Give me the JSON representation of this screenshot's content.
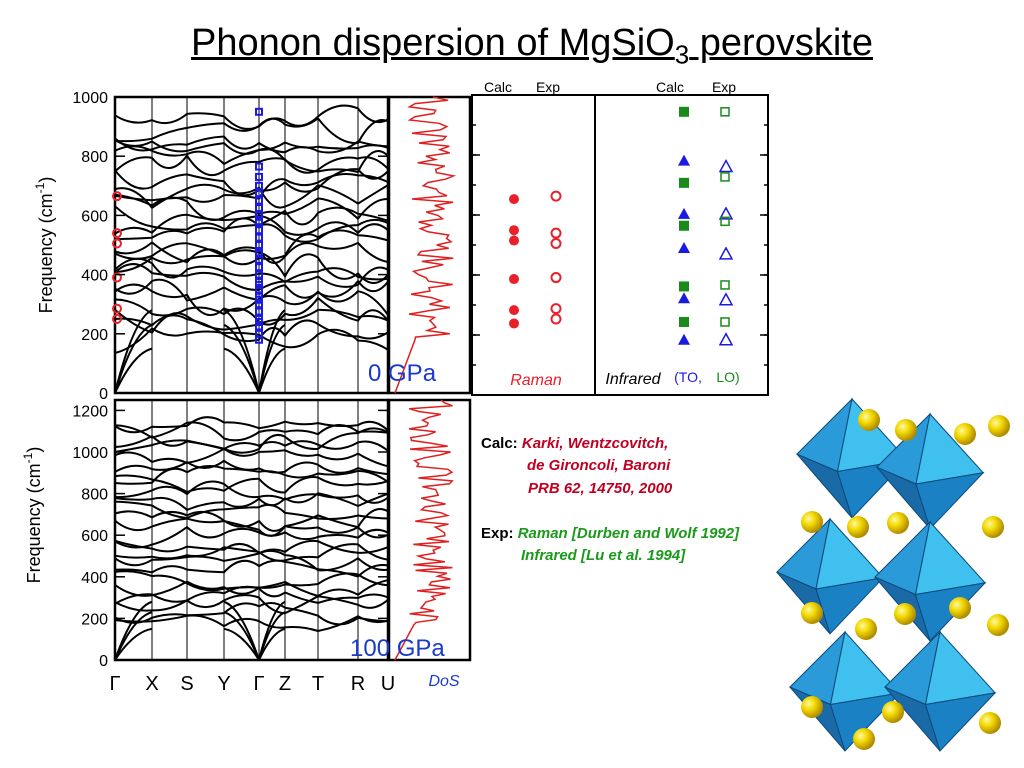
{
  "title": {
    "main": "Phonon dispersion of MgSiO",
    "sub": "3",
    "tail": " perovskite"
  },
  "panels": {
    "top": {
      "ylabel": "Frequency (cm",
      "ylabel_exp": "-1",
      "ylabel_close": ")",
      "yticks": [
        0,
        200,
        400,
        600,
        800,
        1000
      ],
      "pressure": "0 GPa"
    },
    "bottom": {
      "ylabel": "Frequency (cm",
      "ylabel_exp": "-1",
      "ylabel_close": ")",
      "yticks": [
        0,
        200,
        400,
        600,
        800,
        1000,
        1200
      ],
      "pressure": "100 GPa"
    },
    "kpoints": [
      "Γ",
      "X",
      "S",
      "Y",
      "Γ",
      "Z",
      "T",
      "R",
      "U"
    ],
    "dos_label": "DoS"
  },
  "modes_panel": {
    "calc_exp_left": [
      "Calc",
      "Exp"
    ],
    "calc_exp_right": [
      "Calc",
      "Exp"
    ],
    "raman_label": "Raman",
    "infrared_label": "Infrared",
    "to_label": "(TO,",
    "lo_label": "LO)"
  },
  "chart_data": {
    "type": "scatter",
    "title": "Phonon dispersion of MgSiO3 perovskite",
    "ylabel": "Frequency (cm-1)",
    "raman": {
      "calc": [
        655,
        550,
        515,
        385,
        280,
        235
      ],
      "exp": [
        665,
        540,
        505,
        390,
        285,
        250
      ]
    },
    "infrared_to": {
      "calc": [
        785,
        605,
        490,
        320,
        180
      ],
      "exp": [
        765,
        605,
        470,
        315,
        180
      ]
    },
    "infrared_lo": {
      "calc": [
        950,
        710,
        565,
        360,
        240
      ],
      "exp": [
        950,
        730,
        580,
        365,
        240
      ]
    }
  },
  "references": {
    "calc_label": "Calc:",
    "calc_lines": [
      "Karki, Wentzcovitch,",
      "de Gironcoli, Baroni",
      "PRB 62, 14750, 2000"
    ],
    "exp_label": "Exp:",
    "exp_lines": [
      "Raman [Durben and Wolf 1992]",
      "Infrared [Lu et al. 1994]"
    ]
  },
  "colors": {
    "raman": "#e8202a",
    "to": "#1a1ae0",
    "lo": "#1a8a1a",
    "dos": "#e02020",
    "pressure": "#1a3acc"
  }
}
